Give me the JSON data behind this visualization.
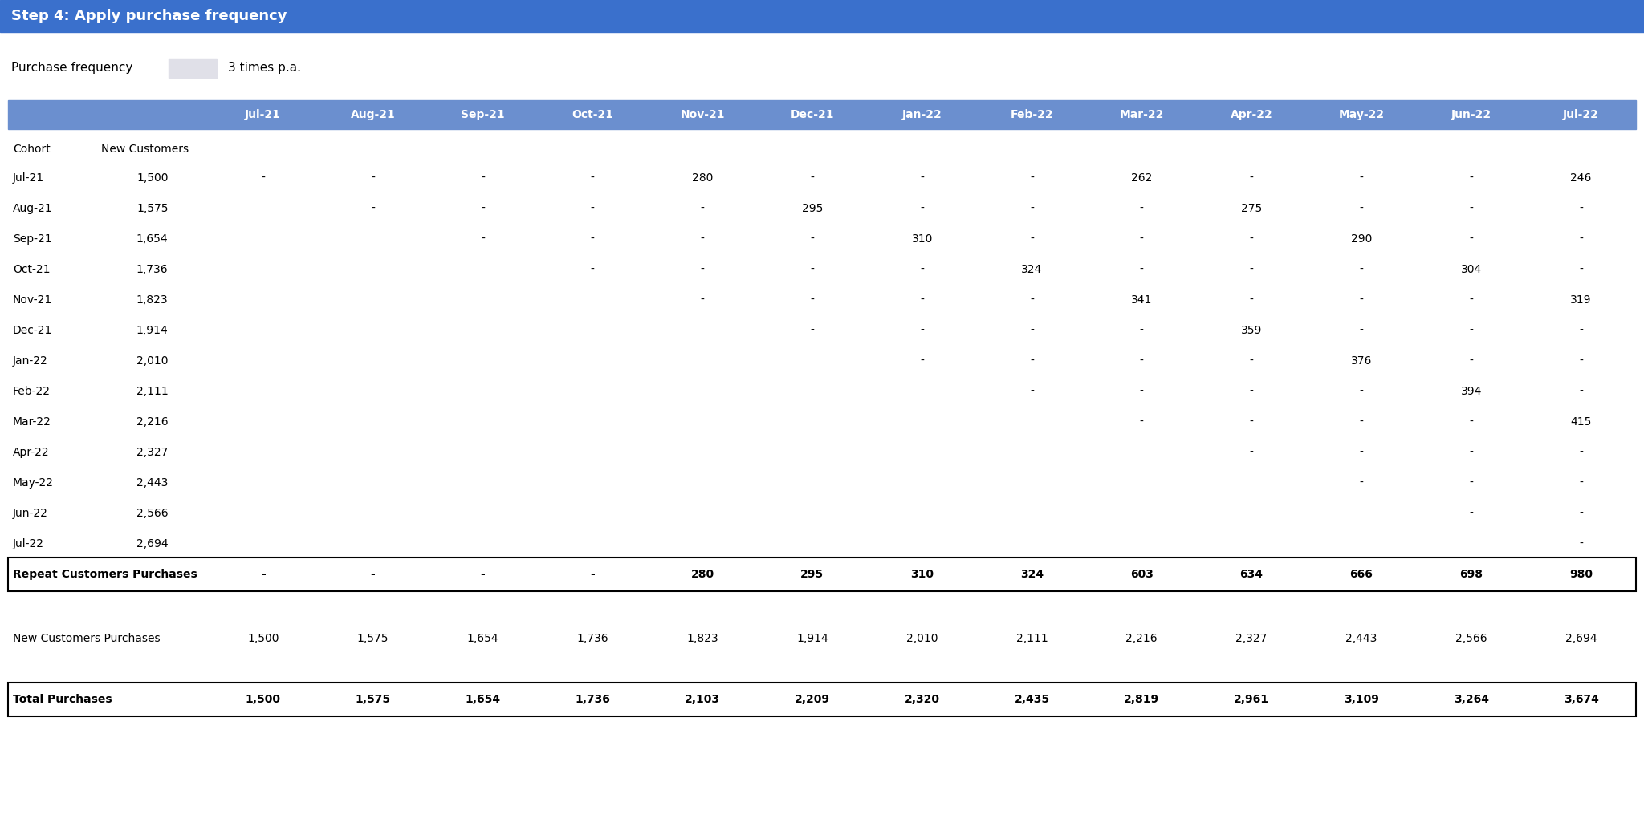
{
  "title": "Step 4: Apply purchase frequency",
  "title_bg": "#3a70cc",
  "title_text_color": "#ffffff",
  "purchase_frequency_label": "Purchase frequency",
  "purchase_frequency_value": "3 times p.a.",
  "header_bg": "#6b8fcf",
  "header_text_color": "#ffffff",
  "columns": [
    "",
    "New Customers",
    "Jul-21",
    "Aug-21",
    "Sep-21",
    "Oct-21",
    "Nov-21",
    "Dec-21",
    "Jan-22",
    "Feb-22",
    "Mar-22",
    "Apr-22",
    "May-22",
    "Jun-22",
    "Jul-22"
  ],
  "cohort_rows": [
    [
      "Jul-21",
      "1,500",
      "-",
      "-",
      "-",
      "-",
      "280",
      "-",
      "-",
      "-",
      "262",
      "-",
      "-",
      "-",
      "246"
    ],
    [
      "Aug-21",
      "1,575",
      "",
      "-",
      "-",
      "-",
      "-",
      "295",
      "-",
      "-",
      "-",
      "275",
      "-",
      "-",
      "-"
    ],
    [
      "Sep-21",
      "1,654",
      "",
      "",
      "-",
      "-",
      "-",
      "-",
      "310",
      "-",
      "-",
      "-",
      "290",
      "-",
      "-"
    ],
    [
      "Oct-21",
      "1,736",
      "",
      "",
      "",
      "-",
      "-",
      "-",
      "-",
      "324",
      "-",
      "-",
      "-",
      "304",
      "-"
    ],
    [
      "Nov-21",
      "1,823",
      "",
      "",
      "",
      "",
      "-",
      "-",
      "-",
      "-",
      "341",
      "-",
      "-",
      "-",
      "319"
    ],
    [
      "Dec-21",
      "1,914",
      "",
      "",
      "",
      "",
      "",
      "-",
      "-",
      "-",
      "-",
      "359",
      "-",
      "-",
      "-"
    ],
    [
      "Jan-22",
      "2,010",
      "",
      "",
      "",
      "",
      "",
      "",
      "-",
      "-",
      "-",
      "-",
      "376",
      "-",
      "-"
    ],
    [
      "Feb-22",
      "2,111",
      "",
      "",
      "",
      "",
      "",
      "",
      "",
      "-",
      "-",
      "-",
      "-",
      "394",
      "-"
    ],
    [
      "Mar-22",
      "2,216",
      "",
      "",
      "",
      "",
      "",
      "",
      "",
      "",
      "-",
      "-",
      "-",
      "-",
      "415"
    ],
    [
      "Apr-22",
      "2,327",
      "",
      "",
      "",
      "",
      "",
      "",
      "",
      "",
      "",
      "-",
      "-",
      "-",
      "-"
    ],
    [
      "May-22",
      "2,443",
      "",
      "",
      "",
      "",
      "",
      "",
      "",
      "",
      "",
      "",
      "-",
      "-",
      "-"
    ],
    [
      "Jun-22",
      "2,566",
      "",
      "",
      "",
      "",
      "",
      "",
      "",
      "",
      "",
      "",
      "",
      "-",
      "-"
    ],
    [
      "Jul-22",
      "2,694",
      "",
      "",
      "",
      "",
      "",
      "",
      "",
      "",
      "",
      "",
      "",
      "",
      "-"
    ]
  ],
  "repeat_row": [
    "Repeat Customers Purchases",
    "",
    "-",
    "-",
    "-",
    "-",
    "280",
    "295",
    "310",
    "324",
    "603",
    "634",
    "666",
    "698",
    "980"
  ],
  "new_customers_row": [
    "New Customers Purchases",
    "",
    "1,500",
    "1,575",
    "1,654",
    "1,736",
    "1,823",
    "1,914",
    "2,010",
    "2,111",
    "2,216",
    "2,327",
    "2,443",
    "2,566",
    "2,694"
  ],
  "total_row": [
    "Total Purchases",
    "",
    "1,500",
    "1,575",
    "1,654",
    "1,736",
    "2,103",
    "2,209",
    "2,320",
    "2,435",
    "2,819",
    "2,961",
    "3,109",
    "3,264",
    "3,674"
  ],
  "bg_color": "#ffffff",
  "border_color": "#000000",
  "header_row_bg": "#6b8fcf"
}
